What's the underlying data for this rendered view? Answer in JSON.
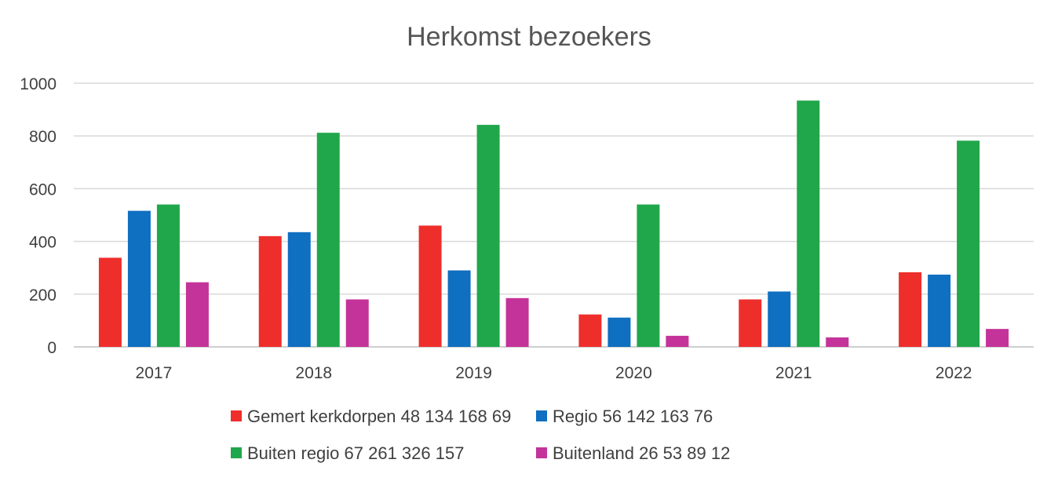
{
  "chart_data": {
    "type": "bar",
    "title": "Herkomst bezoekers",
    "xlabel": "",
    "ylabel": "",
    "categories": [
      "2017",
      "2018",
      "2019",
      "2020",
      "2021",
      "2022"
    ],
    "ylim": [
      0,
      1000
    ],
    "yticks": [
      0,
      200,
      400,
      600,
      800,
      1000
    ],
    "grid": true,
    "legend_position": "bottom",
    "series": [
      {
        "name": "Gemert kerkdorpen 48 134 168 69",
        "color": "#ee2e2b",
        "values": [
          338,
          420,
          460,
          123,
          180,
          283
        ]
      },
      {
        "name": "Regio 56 142 163 76",
        "color": "#0f6fc0",
        "values": [
          516,
          435,
          290,
          111,
          210,
          274
        ]
      },
      {
        "name": "Buiten regio 67 261 326 157",
        "color": "#21a74b",
        "values": [
          540,
          812,
          842,
          540,
          934,
          782
        ]
      },
      {
        "name": "Buitenland 26 53 89 12",
        "color": "#c43399",
        "values": [
          245,
          180,
          185,
          42,
          36,
          68
        ]
      }
    ]
  }
}
